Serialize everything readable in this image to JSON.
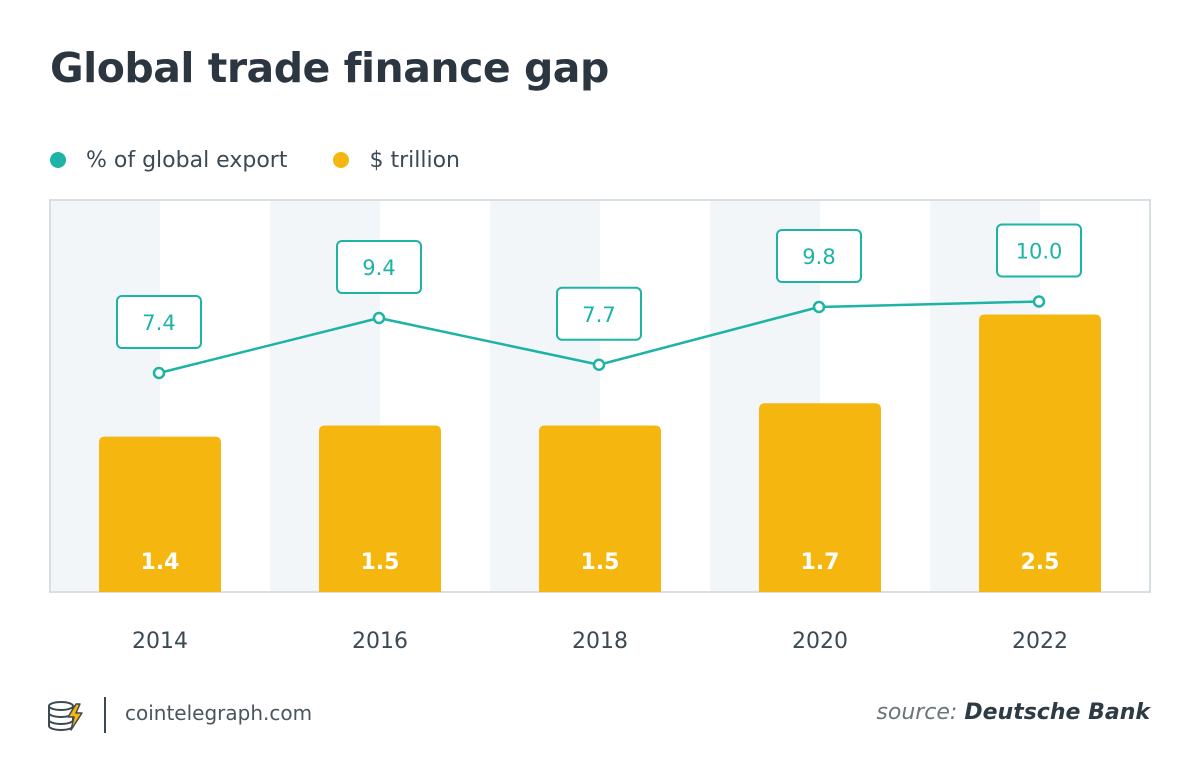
{
  "title": "Global trade finance gap",
  "legend": {
    "line_label": "% of global export",
    "bar_label": "$ trillion"
  },
  "footer": {
    "site": "cointelegraph.com",
    "source_prefix": "source:",
    "source_name": "Deutsche Bank"
  },
  "colors": {
    "line": "#1db3a5",
    "bar": "#f5b70f",
    "band": "#f2f6f8",
    "frame": "#d8dfe3"
  },
  "chart_data": {
    "type": "bar",
    "categories": [
      "2014",
      "2016",
      "2018",
      "2020",
      "2022"
    ],
    "series": [
      {
        "name": "$ trillion",
        "type": "bar",
        "values": [
          1.4,
          1.5,
          1.5,
          1.7,
          2.5
        ],
        "labels": [
          "1.4",
          "1.5",
          "1.5",
          "1.7",
          "2.5"
        ]
      },
      {
        "name": "% of global export",
        "type": "line",
        "values": [
          7.4,
          9.4,
          7.7,
          9.8,
          10.0
        ],
        "labels": [
          "7.4",
          "9.4",
          "7.7",
          "9.8",
          "10.0"
        ]
      }
    ],
    "grid": false,
    "legend_position": "top-left"
  }
}
